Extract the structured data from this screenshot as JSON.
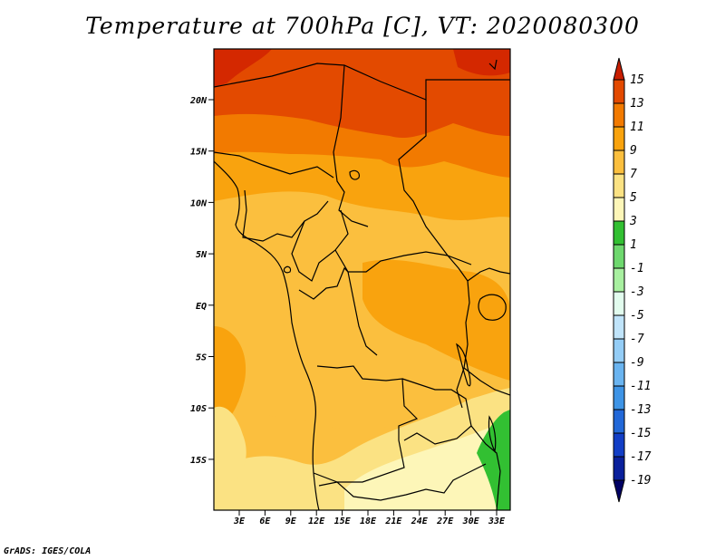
{
  "title": "Temperature at 700hPa [C], VT: 2020080300",
  "credit": "GrADS: IGES/COLA",
  "axes": {
    "lat_labels": [
      "20N",
      "15N",
      "10N",
      "5N",
      "EQ",
      "5S",
      "10S",
      "15S"
    ],
    "lon_labels": [
      "3E",
      "6E",
      "9E",
      "12E",
      "15E",
      "18E",
      "21E",
      "24E",
      "27E",
      "30E",
      "33E"
    ]
  },
  "colorbar": {
    "labels": [
      "15",
      "13",
      "11",
      "9",
      "7",
      "5",
      "3",
      "1",
      "-1",
      "-3",
      "-5",
      "-7",
      "-9",
      "-11",
      "-13",
      "-15",
      "-17",
      "-19"
    ],
    "colors": [
      "#c81e00",
      "#e34a00",
      "#f27a00",
      "#f9a30e",
      "#fbbf3e",
      "#fbe283",
      "#fdf6b8",
      "#32c032",
      "#6ed86e",
      "#a8f0a0",
      "#e2fcee",
      "#c0e4fa",
      "#94cdf6",
      "#6ab4f0",
      "#3e94e6",
      "#2268d8",
      "#123ec6",
      "#0a209c",
      "#000064"
    ]
  },
  "fill_colors": {
    "c1": "#e34a00",
    "c2": "#f27a00",
    "c3": "#f9a30e",
    "c4": "#fbbf3e",
    "c5": "#fbe283",
    "c6": "#fdf6b8",
    "c7": "#32c032",
    "c0": "#d42800"
  }
}
